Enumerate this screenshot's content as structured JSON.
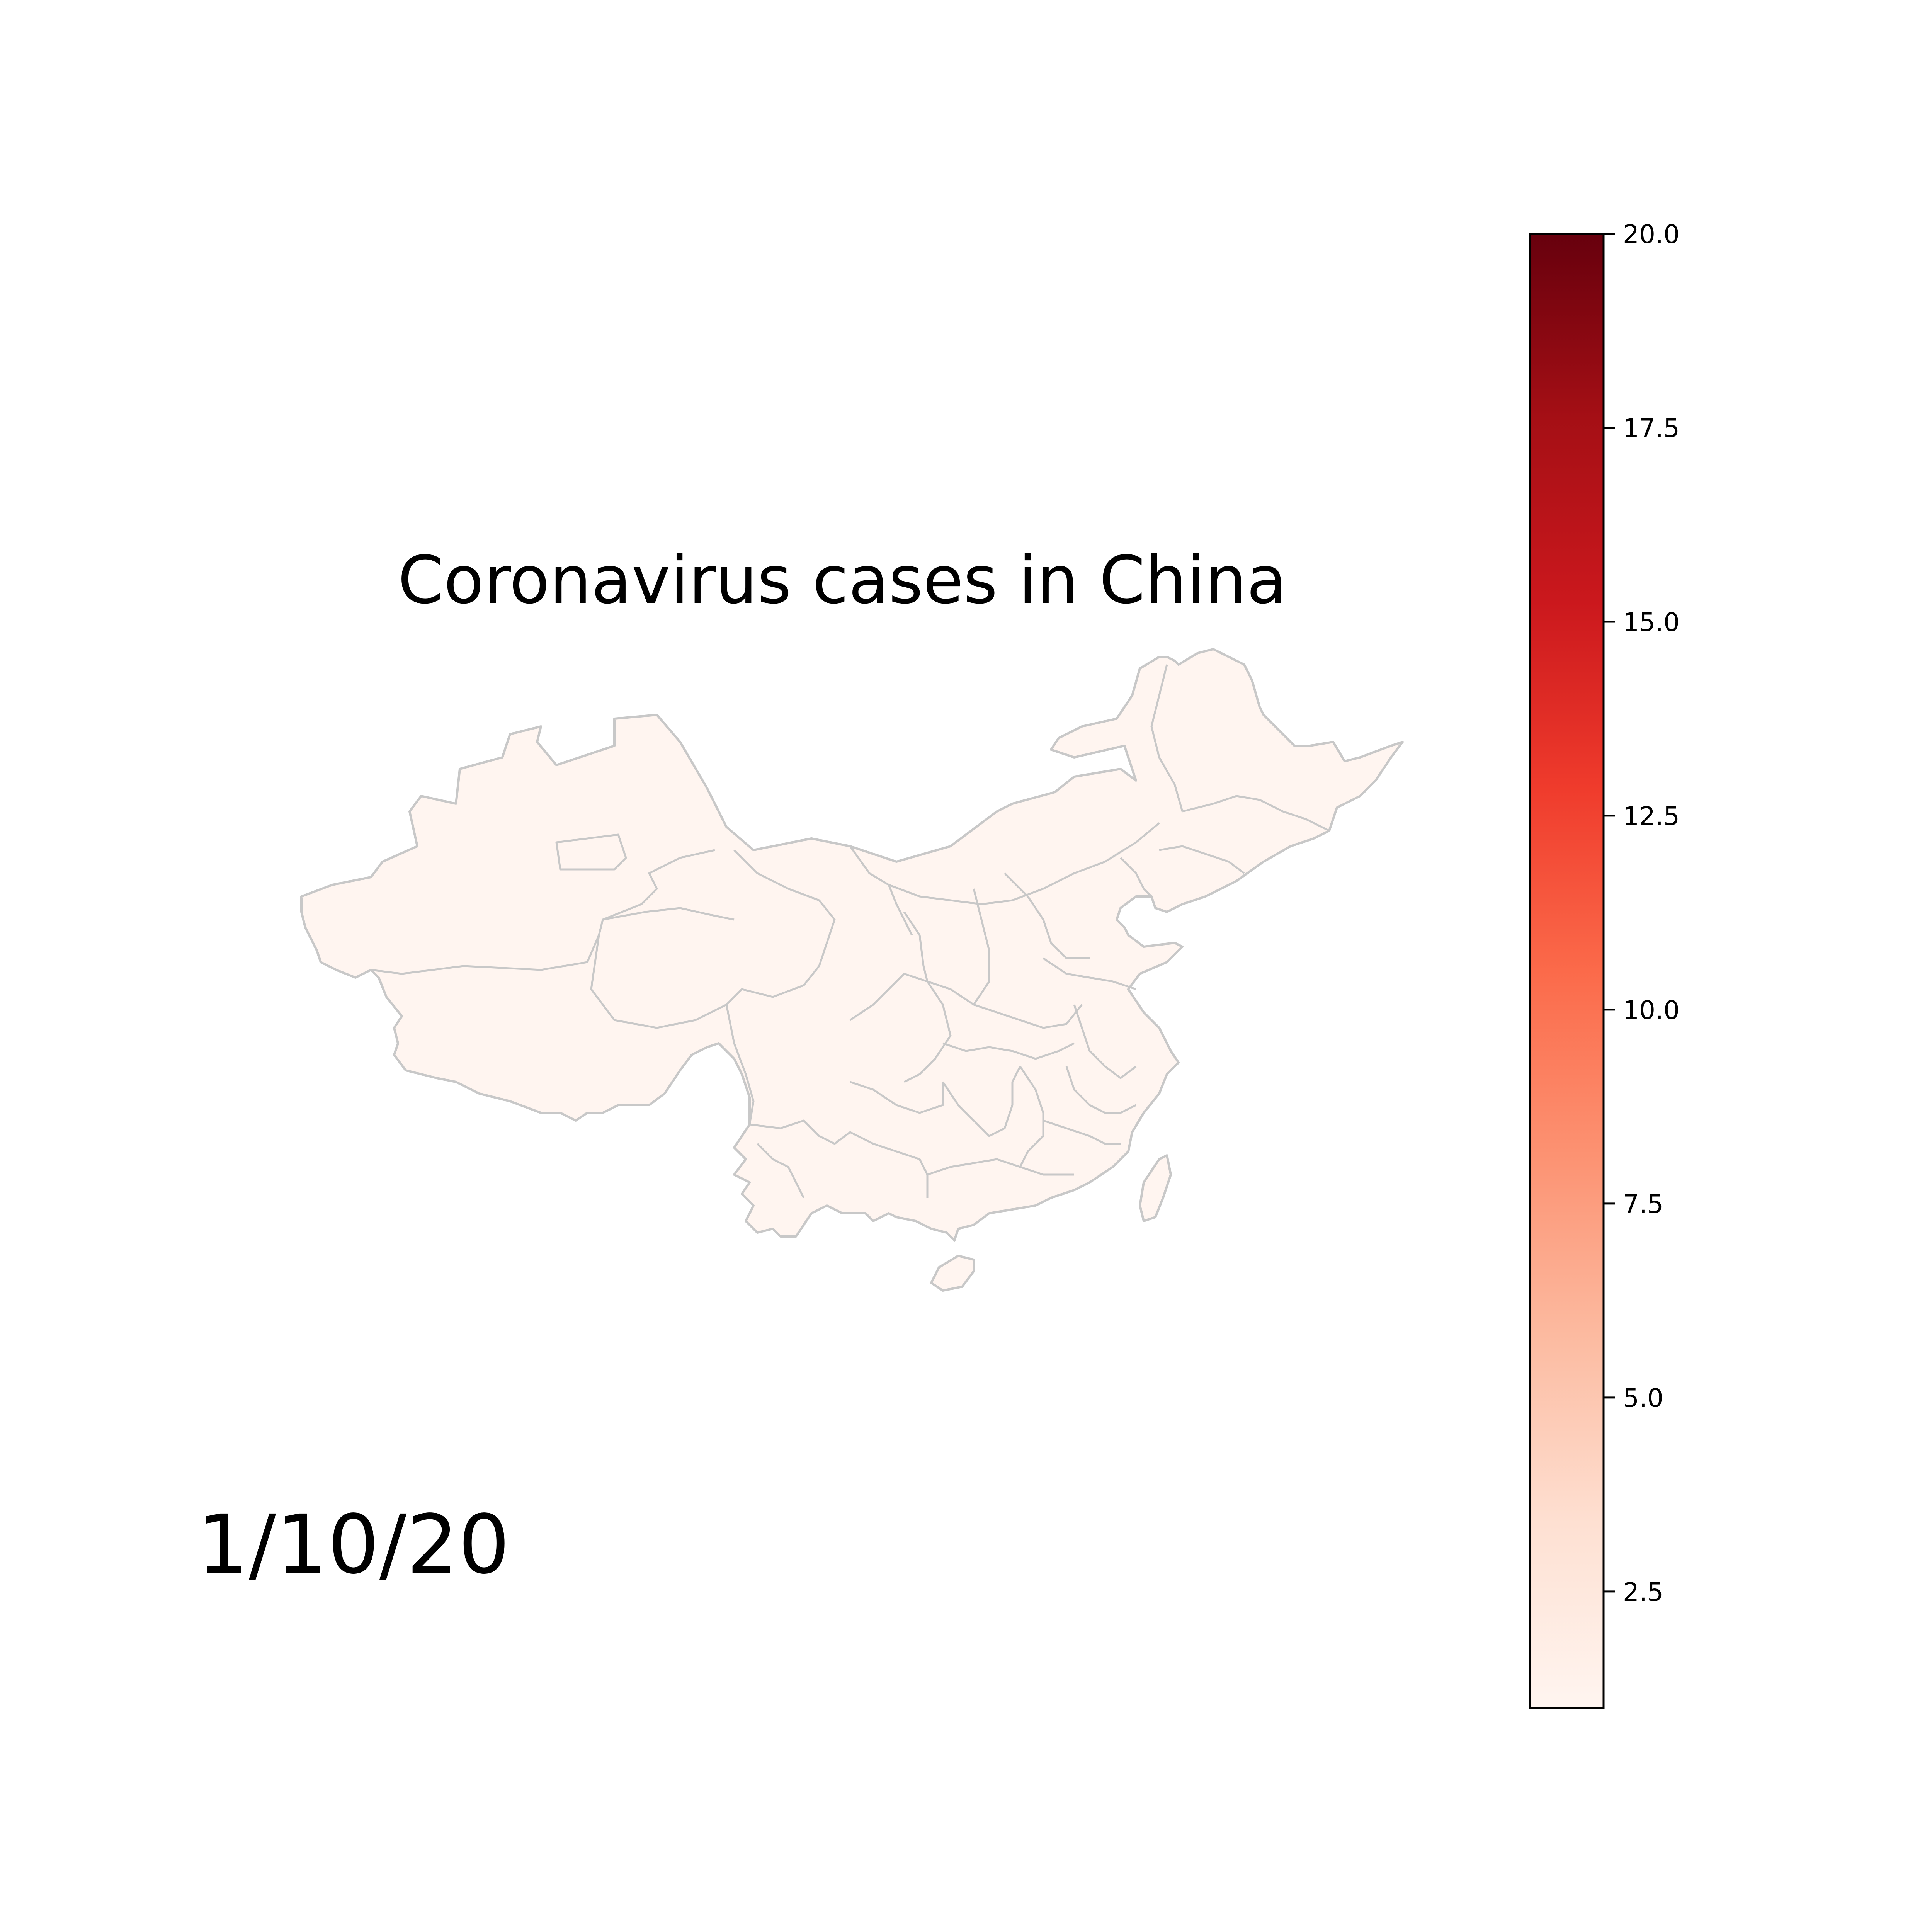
{
  "title": "Coronavirus cases in China",
  "date": "1/10/20",
  "colors": {
    "region_fill": "#fff5f0",
    "region_border": "#c8c8c8",
    "colorbar_stops": [
      "#fff5f0",
      "#fee0d2",
      "#fcbba1",
      "#fc9272",
      "#fb6a4a",
      "#ef3b2c",
      "#cb181d",
      "#a50f15",
      "#67000d"
    ]
  },
  "chart_data": {
    "type": "heatmap",
    "colormap": "Reds",
    "title": "Coronavirus cases in China",
    "annotation": "1/10/20",
    "color_range": [
      1,
      20
    ],
    "colorbar_ticks": [
      2.5,
      5.0,
      7.5,
      10.0,
      12.5,
      15.0,
      17.5,
      20.0
    ],
    "colorbar_tick_labels": [
      "2.5",
      "5.0",
      "7.5",
      "10.0",
      "12.5",
      "15.0",
      "17.5",
      "20.0"
    ],
    "all_regions_value": 1
  }
}
